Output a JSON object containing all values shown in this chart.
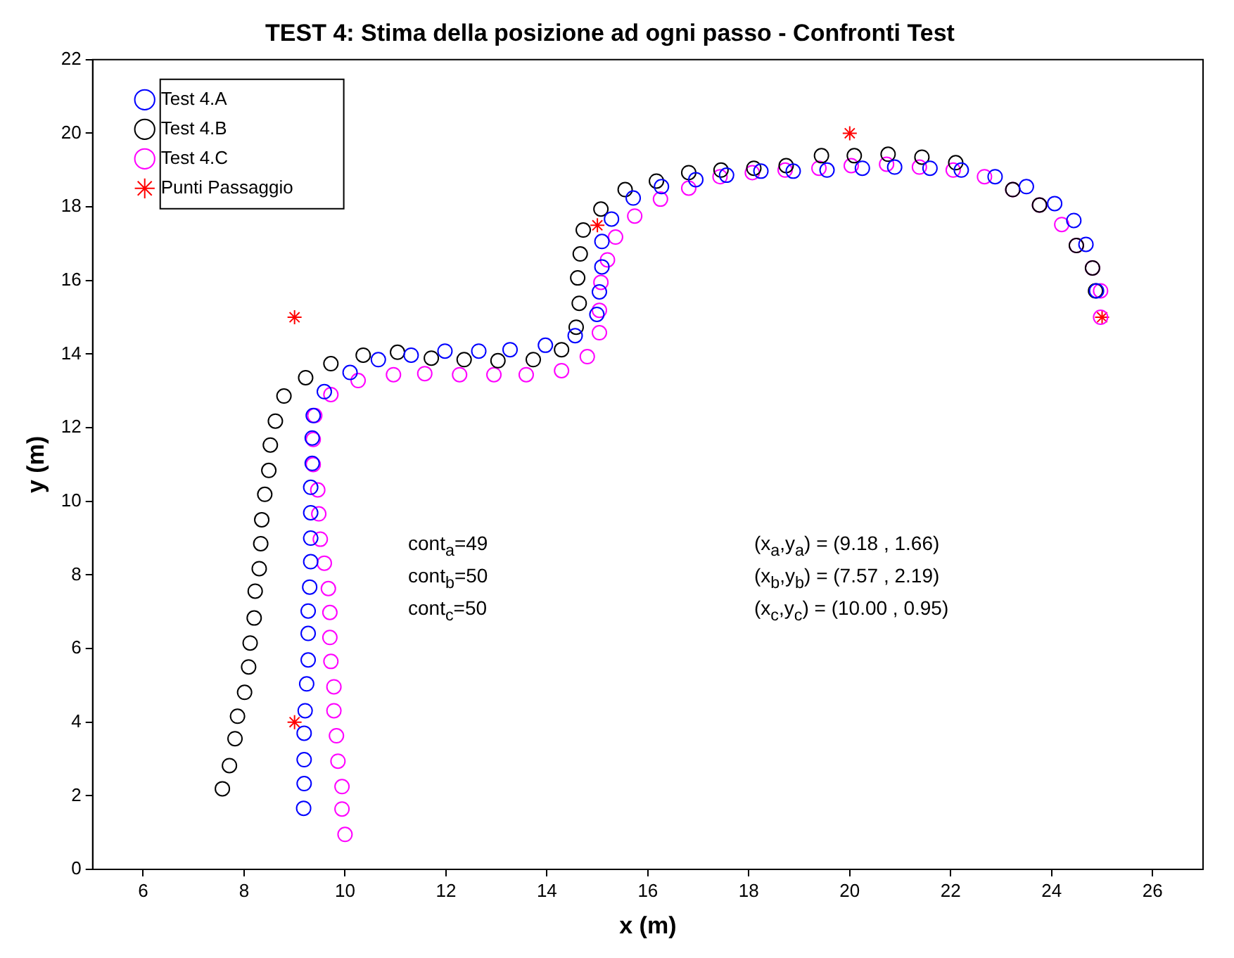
{
  "chart_data": {
    "type": "scatter",
    "title": "TEST 4: Stima della posizione ad ogni passo - Confronti Test",
    "xlabel": "x (m)",
    "ylabel": "y (m)",
    "xlim": [
      5,
      27
    ],
    "xticks": [
      6,
      8,
      10,
      12,
      14,
      16,
      18,
      20,
      22,
      24,
      26
    ],
    "ylim": [
      0,
      22
    ],
    "yticks": [
      0,
      2,
      4,
      6,
      8,
      10,
      12,
      14,
      16,
      18,
      20,
      22
    ],
    "grid": false,
    "legend": "top left",
    "series": [
      {
        "name": "Test 4.A",
        "color": "#0000ff",
        "marker": "circle",
        "x": [
          9.18,
          9.19,
          9.19,
          9.19,
          9.21,
          9.24,
          9.27,
          9.27,
          9.27,
          9.3,
          9.32,
          9.32,
          9.32,
          9.32,
          9.35,
          9.35,
          9.37,
          9.59,
          10.1,
          10.66,
          11.31,
          11.98,
          12.65,
          13.27,
          13.97,
          14.56,
          14.99,
          15.04,
          15.09,
          15.09,
          15.28,
          15.71,
          16.27,
          16.95,
          17.56,
          18.24,
          18.88,
          19.55,
          20.25,
          20.89,
          21.59,
          22.21,
          22.88,
          23.5,
          24.06,
          24.44,
          24.68,
          24.89
        ],
        "values": [
          1.66,
          2.33,
          2.98,
          3.7,
          4.31,
          5.04,
          5.69,
          6.41,
          7.02,
          7.67,
          8.36,
          9.0,
          9.69,
          10.38,
          11.03,
          11.72,
          12.33,
          12.98,
          13.5,
          13.85,
          13.97,
          14.08,
          14.08,
          14.12,
          14.24,
          14.5,
          15.08,
          15.69,
          16.37,
          17.06,
          17.67,
          18.24,
          18.55,
          18.74,
          18.86,
          18.97,
          18.97,
          19.0,
          19.05,
          19.08,
          19.05,
          19.0,
          18.82,
          18.55,
          18.09,
          17.63,
          16.98,
          15.72
        ]
      },
      {
        "name": "Test 4.B",
        "color": "#000000",
        "marker": "circle",
        "x": [
          7.57,
          7.71,
          7.82,
          7.87,
          8.01,
          8.09,
          8.12,
          8.2,
          8.22,
          8.3,
          8.33,
          8.35,
          8.41,
          8.49,
          8.52,
          8.62,
          8.79,
          9.22,
          9.72,
          10.36,
          11.04,
          11.71,
          12.36,
          13.03,
          13.73,
          14.29,
          14.58,
          14.64,
          14.61,
          14.66,
          14.72,
          15.07,
          15.55,
          16.17,
          16.81,
          17.45,
          18.1,
          18.74,
          19.44,
          20.09,
          20.76,
          21.43,
          22.1,
          23.23,
          23.76,
          24.49,
          24.81,
          24.87
        ],
        "values": [
          2.19,
          2.82,
          3.55,
          4.16,
          4.81,
          5.5,
          6.15,
          6.83,
          7.56,
          8.17,
          8.85,
          9.5,
          10.19,
          10.84,
          11.53,
          12.18,
          12.86,
          13.36,
          13.74,
          13.97,
          14.05,
          13.89,
          13.85,
          13.82,
          13.85,
          14.12,
          14.73,
          15.38,
          16.07,
          16.72,
          17.37,
          17.94,
          18.47,
          18.7,
          18.93,
          19.0,
          19.05,
          19.12,
          19.39,
          19.39,
          19.43,
          19.35,
          19.2,
          18.47,
          18.05,
          16.95,
          16.34,
          15.72
        ]
      },
      {
        "name": "Test 4.C",
        "color": "#ff00ff",
        "marker": "circle",
        "x": [
          10.0,
          9.94,
          9.94,
          9.86,
          9.83,
          9.78,
          9.78,
          9.72,
          9.7,
          9.7,
          9.67,
          9.59,
          9.51,
          9.48,
          9.46,
          9.37,
          9.37,
          9.4,
          9.72,
          10.26,
          10.96,
          11.58,
          12.27,
          12.95,
          13.59,
          14.29,
          14.8,
          15.04,
          15.04,
          15.07,
          15.2,
          15.36,
          15.74,
          16.25,
          16.81,
          17.43,
          18.07,
          18.72,
          19.39,
          20.03,
          20.73,
          21.38,
          22.05,
          22.67,
          23.23,
          23.76,
          24.2,
          24.49,
          24.81,
          24.97,
          24.97
        ],
        "values": [
          0.95,
          1.64,
          2.25,
          2.94,
          3.63,
          4.31,
          4.96,
          5.65,
          6.3,
          6.98,
          7.63,
          8.32,
          8.97,
          9.66,
          10.31,
          11.0,
          11.68,
          12.33,
          12.9,
          13.28,
          13.44,
          13.47,
          13.44,
          13.44,
          13.44,
          13.55,
          13.93,
          14.58,
          15.19,
          15.95,
          16.56,
          17.18,
          17.75,
          18.21,
          18.51,
          18.82,
          18.93,
          19.0,
          19.05,
          19.12,
          19.16,
          19.08,
          19.0,
          18.82,
          18.47,
          18.05,
          17.52,
          16.95,
          16.34,
          15.72,
          15.0
        ]
      },
      {
        "name": "Punti Passaggio",
        "color": "#ff0000",
        "marker": "cross",
        "x": [
          9,
          9,
          15,
          20,
          25
        ],
        "values": [
          4,
          15,
          17.5,
          20,
          15
        ]
      }
    ],
    "annotations": [
      "cont$_{a}$=49",
      "cont$_{b}$=50",
      "cont$_{c}$=50",
      "(x$_{a}$,y$_{a}$) = (9.18 , 1.66)",
      "(x$_{b}$,y$_{b}$) = (7.57 , 2.19)",
      "(x$_{c}$,y$_{c}$) = (10.00 , 0.95)"
    ]
  }
}
